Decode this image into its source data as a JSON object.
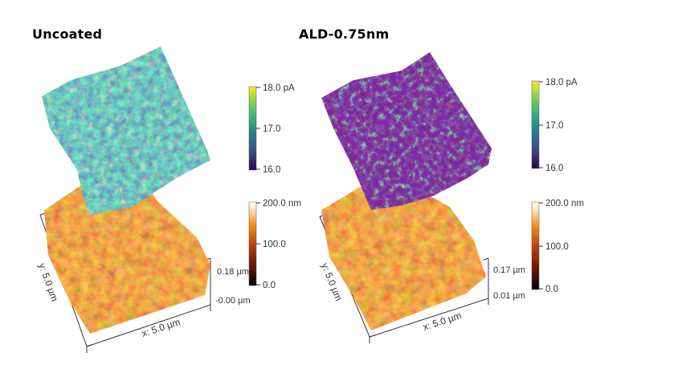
{
  "panels": [
    {
      "id": "uncoated",
      "title": "Uncoated",
      "current_colorbar": {
        "max": "18.0 pA",
        "mid": "17.0",
        "min": "16.0"
      },
      "height_colorbar": {
        "max": "200.0 nm",
        "mid": "100.0",
        "min": "0.0"
      },
      "z_axis": {
        "top": "0.18 µm",
        "bottom": "-0.00 µm"
      },
      "x_axis_label": "x: 5.0 µm",
      "y_axis_label": "y: 5.0 µm"
    },
    {
      "id": "ald",
      "title": "ALD-0.75nm",
      "current_colorbar": {
        "max": "18.0 pA",
        "mid": "17.0",
        "min": "16.0"
      },
      "height_colorbar": {
        "max": "200.0 nm",
        "mid": "100.0",
        "min": "0.0"
      },
      "z_axis": {
        "top": "0.17 µm",
        "bottom": "0.01 µm"
      },
      "x_axis_label": "x: 5.0 µm",
      "y_axis_label": "y: 5.0 µm"
    }
  ],
  "colormaps": {
    "current": [
      "#440154",
      "#3b528b",
      "#21918c",
      "#5ec962",
      "#fde725"
    ],
    "height": [
      "#000000",
      "#6a1a0a",
      "#c0420f",
      "#f08a1a",
      "#ffd9a0",
      "#ffffff"
    ]
  }
}
